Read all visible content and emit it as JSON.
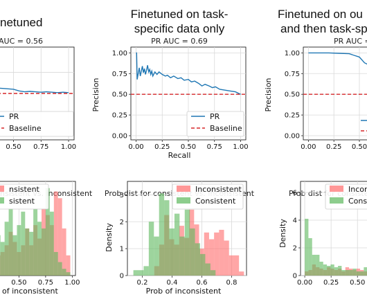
{
  "colors": {
    "pr_line": "#1f77b4",
    "baseline": "#d62728",
    "inconsistent": "#ff6b6b",
    "consistent": "#5cb85c",
    "grid": "#d9d9d9"
  },
  "panels": [
    {
      "title_lines": [
        "netuned"
      ],
      "pr": {
        "subtitle": "AUC = 0.56",
        "xlabel": "",
        "ylabel": "",
        "xticks": [
          "0.50",
          "0.75",
          "1.00"
        ],
        "yticks": [],
        "legend": [
          "PR",
          "Baseline"
        ]
      },
      "hist": {
        "title": "nsistent vs. inconsistent",
        "xlabel": "of inconsistent",
        "ylabel": "",
        "xticks": [
          "0.50",
          "0.75",
          "1.00"
        ],
        "yticks": [],
        "legend": [
          "nsistent",
          "sistent"
        ]
      }
    },
    {
      "title_lines": [
        "Finetuned on task-",
        "specific data only"
      ],
      "pr": {
        "subtitle": "PR AUC = 0.69",
        "xlabel": "Recall",
        "ylabel": "Precision",
        "xticks": [
          "0.00",
          "0.25",
          "0.50",
          "0.75",
          "1.00"
        ],
        "yticks": [
          "0.00",
          "0.25",
          "0.50",
          "0.75",
          "1.00"
        ],
        "legend": [
          "PR",
          "Baseline"
        ]
      },
      "hist": {
        "title": "Prob dist for consistent vs. inconsistent",
        "xlabel": "Prob of inconsistent",
        "ylabel": "Density",
        "xticks": [
          "0.2",
          "0.4",
          "0.6",
          "0.8"
        ],
        "yticks": [
          "0",
          "1",
          "2",
          "3"
        ],
        "legend": [
          "Inconsistent",
          "Consistent"
        ]
      }
    },
    {
      "title_lines": [
        "Finetuned on ou",
        "and then task-sp"
      ],
      "pr": {
        "subtitle": "PR AUC = 0",
        "xlabel": "",
        "ylabel": "Precision",
        "xticks": [
          "0.00",
          "0.25",
          "0.50"
        ],
        "yticks": [
          "0.00",
          "0.25",
          "0.50",
          "0.75",
          "1.00"
        ],
        "legend": []
      },
      "hist": {
        "title": "Prob dist for consistent",
        "xlabel": "",
        "ylabel": "Density",
        "xticks": [
          "0.00",
          "0.25",
          "0.50"
        ],
        "yticks": [
          "0",
          "2",
          "4",
          "6"
        ],
        "legend": [
          "Incon",
          "Cons"
        ]
      }
    }
  ],
  "chart_data": [
    {
      "type": "line",
      "panel": "left PR curve (cropped)",
      "xlim": [
        0,
        1.05
      ],
      "ylim": [
        -0.05,
        1.05
      ],
      "series": [
        {
          "name": "PR",
          "x": [
            0.0,
            0.1,
            0.2,
            0.3,
            0.4,
            0.5,
            0.55,
            0.6,
            0.65,
            0.7,
            0.75,
            0.8,
            0.85,
            0.9,
            0.95,
            1.0
          ],
          "y": [
            0.6,
            0.59,
            0.58,
            0.57,
            0.56,
            0.55,
            0.53,
            0.52,
            0.525,
            0.52,
            0.515,
            0.52,
            0.515,
            0.51,
            0.515,
            0.51
          ]
        },
        {
          "name": "Baseline",
          "x": [
            0,
            1.05
          ],
          "y": [
            0.5,
            0.5
          ]
        }
      ]
    },
    {
      "type": "line",
      "panel": "middle PR curve",
      "title": "PR AUC = 0.69",
      "xlabel": "Recall",
      "ylabel": "Precision",
      "xlim": [
        -0.05,
        1.05
      ],
      "ylim": [
        -0.05,
        1.07
      ],
      "series": [
        {
          "name": "PR",
          "x": [
            0.0,
            0.005,
            0.01,
            0.02,
            0.03,
            0.04,
            0.05,
            0.06,
            0.07,
            0.08,
            0.09,
            0.1,
            0.11,
            0.12,
            0.13,
            0.14,
            0.15,
            0.16,
            0.18,
            0.2,
            0.22,
            0.25,
            0.28,
            0.3,
            0.33,
            0.36,
            0.4,
            0.43,
            0.46,
            0.5,
            0.53,
            0.56,
            0.6,
            0.63,
            0.66,
            0.7,
            0.73,
            0.76,
            0.8,
            0.85,
            0.9,
            0.95,
            1.0
          ],
          "y": [
            1.0,
            1.0,
            0.68,
            0.75,
            0.82,
            0.72,
            0.78,
            0.84,
            0.76,
            0.81,
            0.74,
            0.79,
            0.85,
            0.77,
            0.8,
            0.74,
            0.78,
            0.72,
            0.77,
            0.74,
            0.77,
            0.74,
            0.72,
            0.73,
            0.7,
            0.72,
            0.69,
            0.7,
            0.67,
            0.68,
            0.65,
            0.66,
            0.63,
            0.6,
            0.62,
            0.6,
            0.58,
            0.59,
            0.56,
            0.55,
            0.54,
            0.53,
            0.5
          ]
        },
        {
          "name": "Baseline",
          "x": [
            -0.05,
            1.05
          ],
          "y": [
            0.5,
            0.5
          ]
        }
      ]
    },
    {
      "type": "line",
      "panel": "right PR curve (cropped)",
      "ylabel": "Precision",
      "xlim": [
        -0.05,
        1.05
      ],
      "ylim": [
        -0.05,
        1.07
      ],
      "series": [
        {
          "name": "PR",
          "x": [
            0.0,
            0.1,
            0.2,
            0.3,
            0.4,
            0.45,
            0.5,
            0.55,
            0.6
          ],
          "y": [
            1.0,
            1.0,
            1.0,
            0.995,
            0.99,
            0.97,
            0.95,
            0.88,
            0.85
          ]
        },
        {
          "name": "Baseline",
          "x": [
            -0.05,
            1.05
          ],
          "y": [
            0.5,
            0.5
          ]
        }
      ]
    },
    {
      "type": "bar",
      "panel": "left histogram (cropped)",
      "bin_start": 0.25,
      "bin_width": 0.0385,
      "series": [
        {
          "name": "Inconsistent",
          "values": [
            0.8,
            0.6,
            0.7,
            0.9,
            1.3,
            1.0,
            0.7,
            0.9,
            1.4,
            0.9,
            1.5,
            1.1,
            2.0,
            1.8,
            1.5,
            2.5,
            2.3,
            1.4,
            0.6
          ]
        },
        {
          "name": "Consistent",
          "values": [
            1.1,
            1.2,
            1.0,
            1.6,
            2.0,
            1.2,
            1.5,
            1.9,
            1.4,
            1.3,
            2.0,
            1.6,
            1.4,
            2.6,
            1.9,
            0.7,
            0.4,
            0.2,
            0.1
          ]
        }
      ]
    },
    {
      "type": "bar",
      "panel": "middle histogram",
      "title": "Prob dist for consistent vs. inconsistent",
      "xlabel": "Prob of inconsistent",
      "ylabel": "Density",
      "xlim": [
        0.1,
        0.9
      ],
      "ylim": [
        0,
        3.5
      ],
      "series": [
        {
          "name": "Inconsistent",
          "bin_start": 0.28,
          "bin_width": 0.0335,
          "values": [
            0.35,
            1.15,
            2.25,
            1.35,
            1.15,
            1.85,
            1.4,
            2.45,
            1.9,
            1.0,
            1.6,
            1.35,
            1.6,
            1.7,
            1.3,
            0.75,
            0.75,
            0.15
          ]
        },
        {
          "name": "Consistent",
          "bin_start": 0.14,
          "bin_width": 0.0345,
          "values": [
            0.2,
            0.2,
            0.35,
            2.0,
            1.45,
            3.05,
            2.8,
            1.75,
            2.3,
            1.45,
            2.45,
            1.75,
            1.2,
            0.8,
            0.45,
            0.2
          ]
        }
      ]
    },
    {
      "type": "bar",
      "panel": "right histogram (cropped)",
      "ylabel": "Density",
      "bin_start": 0.0,
      "bin_width": 0.035,
      "series": [
        {
          "name": "Inconsistent",
          "values": [
            0.3,
            0.4,
            0.8,
            0.6,
            0.5,
            0.4,
            0.6,
            0.5,
            0.4,
            0.5,
            0.3,
            0.6,
            0.5,
            0.4,
            0.5,
            0.4,
            0.3,
            0.4
          ]
        },
        {
          "name": "Consistent",
          "values": [
            4.1,
            2.7,
            1.5,
            1.5,
            1.0,
            0.8,
            0.7,
            0.8,
            0.6,
            0.7,
            0.4,
            0.4,
            0.4,
            0.5,
            0.3,
            0.3,
            0.6,
            0.3
          ]
        }
      ]
    }
  ]
}
